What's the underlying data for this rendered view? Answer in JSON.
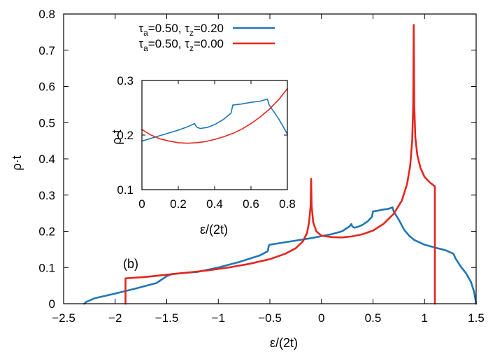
{
  "colors": {
    "series_blue": "#1f77b4",
    "series_red": "#e3261e",
    "axis": "#000000",
    "background": "#ffffff"
  },
  "chart_data": [
    {
      "type": "line",
      "panel_label": "(b)",
      "xlabel": "ε/(2t)",
      "ylabel": "ρ·t",
      "xlim": [
        -2.5,
        1.5
      ],
      "ylim": [
        0,
        0.8
      ],
      "xticks": [
        "−2.5",
        "−2",
        "−1.5",
        "−1",
        "−0.5",
        "0",
        "0.5",
        "1",
        "1.5"
      ],
      "xtick_values": [
        -2.5,
        -2,
        -1.5,
        -1,
        -0.5,
        0,
        0.5,
        1,
        1.5
      ],
      "yticks": [
        "0",
        "0.1",
        "0.2",
        "0.3",
        "0.4",
        "0.5",
        "0.6",
        "0.7",
        "0.8"
      ],
      "ytick_values": [
        0,
        0.1,
        0.2,
        0.3,
        0.4,
        0.5,
        0.6,
        0.7,
        0.8
      ],
      "grid": false,
      "legend_position": "top",
      "series": [
        {
          "legend_prefix": "τ",
          "legend_a_sub": "a",
          "legend_a_val": "=0.50, ",
          "legend_z_sub": "z",
          "legend_z_val": "=0.20",
          "color": "#1f77b4",
          "points": [
            [
              -2.3,
              0
            ],
            [
              -2.28,
              0.005
            ],
            [
              -2.2,
              0.015
            ],
            [
              -2.0,
              0.028
            ],
            [
              -1.8,
              0.042
            ],
            [
              -1.6,
              0.057
            ],
            [
              -1.5,
              0.076
            ],
            [
              -1.45,
              0.082
            ],
            [
              -1.2,
              0.088
            ],
            [
              -1.0,
              0.1
            ],
            [
              -0.8,
              0.115
            ],
            [
              -0.6,
              0.133
            ],
            [
              -0.52,
              0.145
            ],
            [
              -0.51,
              0.161
            ],
            [
              -0.5,
              0.163
            ],
            [
              -0.3,
              0.172
            ],
            [
              -0.1,
              0.181
            ],
            [
              0.1,
              0.192
            ],
            [
              0.2,
              0.2
            ],
            [
              0.27,
              0.213
            ],
            [
              0.29,
              0.22
            ],
            [
              0.3,
              0.213
            ],
            [
              0.32,
              0.21
            ],
            [
              0.36,
              0.213
            ],
            [
              0.4,
              0.218
            ],
            [
              0.45,
              0.228
            ],
            [
              0.49,
              0.24
            ],
            [
              0.5,
              0.255
            ],
            [
              0.55,
              0.257
            ],
            [
              0.6,
              0.26
            ],
            [
              0.65,
              0.262
            ],
            [
              0.69,
              0.266
            ],
            [
              0.7,
              0.255
            ],
            [
              0.75,
              0.232
            ],
            [
              0.8,
              0.205
            ],
            [
              0.85,
              0.188
            ],
            [
              0.9,
              0.176
            ],
            [
              1.0,
              0.163
            ],
            [
              1.1,
              0.155
            ],
            [
              1.2,
              0.148
            ],
            [
              1.28,
              0.138
            ],
            [
              1.3,
              0.125
            ],
            [
              1.35,
              0.103
            ],
            [
              1.4,
              0.085
            ],
            [
              1.45,
              0.06
            ],
            [
              1.48,
              0.033
            ],
            [
              1.5,
              0.0
            ]
          ]
        },
        {
          "legend_prefix": "τ",
          "legend_a_sub": "a",
          "legend_a_val": "=0.50, ",
          "legend_z_sub": "z",
          "legend_z_val": "=0.00",
          "color": "#e3261e",
          "points": [
            [
              -1.9,
              0
            ],
            [
              -1.9,
              0.07
            ],
            [
              -1.7,
              0.074
            ],
            [
              -1.5,
              0.08
            ],
            [
              -1.3,
              0.086
            ],
            [
              -1.1,
              0.092
            ],
            [
              -0.9,
              0.1
            ],
            [
              -0.7,
              0.11
            ],
            [
              -0.5,
              0.123
            ],
            [
              -0.35,
              0.138
            ],
            [
              -0.25,
              0.153
            ],
            [
              -0.18,
              0.172
            ],
            [
              -0.14,
              0.195
            ],
            [
              -0.12,
              0.225
            ],
            [
              -0.105,
              0.27
            ],
            [
              -0.1,
              0.345
            ],
            [
              -0.095,
              0.27
            ],
            [
              -0.08,
              0.225
            ],
            [
              -0.05,
              0.2
            ],
            [
              0,
              0.188
            ],
            [
              0.1,
              0.184
            ],
            [
              0.2,
              0.183
            ],
            [
              0.3,
              0.186
            ],
            [
              0.4,
              0.192
            ],
            [
              0.5,
              0.202
            ],
            [
              0.6,
              0.22
            ],
            [
              0.7,
              0.248
            ],
            [
              0.78,
              0.285
            ],
            [
              0.83,
              0.33
            ],
            [
              0.86,
              0.38
            ],
            [
              0.88,
              0.45
            ],
            [
              0.89,
              0.55
            ],
            [
              0.895,
              0.77
            ],
            [
              0.9,
              0.55
            ],
            [
              0.91,
              0.46
            ],
            [
              0.93,
              0.41
            ],
            [
              0.96,
              0.375
            ],
            [
              1.0,
              0.35
            ],
            [
              1.05,
              0.335
            ],
            [
              1.1,
              0.324
            ],
            [
              1.1,
              0
            ]
          ]
        }
      ]
    },
    {
      "type": "line",
      "inset": true,
      "xlabel": "ε/(2t)",
      "ylabel": "ρ·t",
      "xlim": [
        0,
        0.8
      ],
      "ylim": [
        0.1,
        0.3
      ],
      "xticks": [
        "0",
        "0.2",
        "0.4",
        "0.6",
        "0.8"
      ],
      "xtick_values": [
        0,
        0.2,
        0.4,
        0.6,
        0.8
      ],
      "yticks": [
        "0.1",
        "0.2",
        "0.3"
      ],
      "ytick_values": [
        0.1,
        0.2,
        0.3
      ],
      "series": [
        {
          "color": "#1f77b4",
          "points": [
            [
              0,
              0.189
            ],
            [
              0.05,
              0.194
            ],
            [
              0.1,
              0.199
            ],
            [
              0.15,
              0.204
            ],
            [
              0.2,
              0.209
            ],
            [
              0.25,
              0.215
            ],
            [
              0.29,
              0.221
            ],
            [
              0.3,
              0.215
            ],
            [
              0.32,
              0.212
            ],
            [
              0.36,
              0.214
            ],
            [
              0.4,
              0.219
            ],
            [
              0.45,
              0.229
            ],
            [
              0.49,
              0.24
            ],
            [
              0.5,
              0.255
            ],
            [
              0.55,
              0.257
            ],
            [
              0.6,
              0.26
            ],
            [
              0.65,
              0.262
            ],
            [
              0.69,
              0.266
            ],
            [
              0.7,
              0.255
            ],
            [
              0.75,
              0.231
            ],
            [
              0.8,
              0.202
            ]
          ]
        },
        {
          "color": "#e3261e",
          "points": [
            [
              0,
              0.21
            ],
            [
              0.05,
              0.2
            ],
            [
              0.1,
              0.193
            ],
            [
              0.15,
              0.189
            ],
            [
              0.2,
              0.186
            ],
            [
              0.25,
              0.185
            ],
            [
              0.3,
              0.186
            ],
            [
              0.35,
              0.188
            ],
            [
              0.4,
              0.192
            ],
            [
              0.45,
              0.197
            ],
            [
              0.5,
              0.203
            ],
            [
              0.55,
              0.211
            ],
            [
              0.6,
              0.221
            ],
            [
              0.65,
              0.233
            ],
            [
              0.7,
              0.247
            ],
            [
              0.75,
              0.264
            ],
            [
              0.8,
              0.285
            ]
          ]
        }
      ]
    }
  ]
}
